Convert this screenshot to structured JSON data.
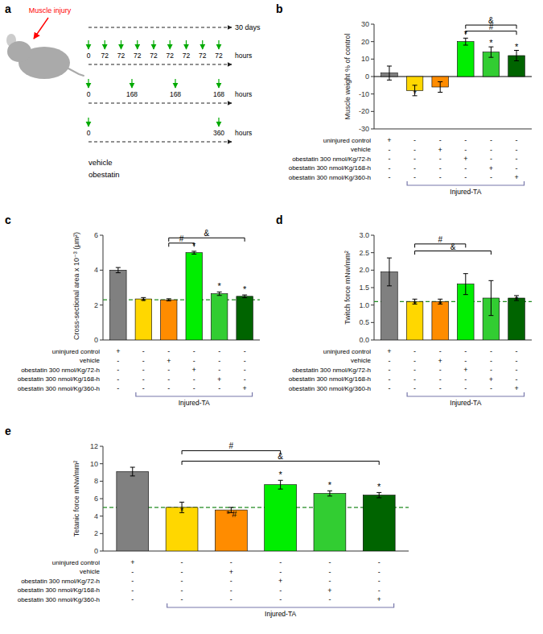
{
  "chart_data": [
    {
      "type": "diagram",
      "title": "a",
      "annotations": [
        {
          "text": "Muscle injury",
          "color": "#FF0000"
        },
        {
          "text": "30 days"
        },
        {
          "text": "vehicle"
        },
        {
          "text": "obestatin"
        }
      ],
      "timelines": [
        {
          "labels": [
            "0",
            "72",
            "72",
            "72",
            "72",
            "72",
            "72",
            "72",
            "72"
          ],
          "unit": "hours",
          "color": "#00AA00"
        },
        {
          "labels": [
            "0",
            "168",
            "168",
            "168"
          ],
          "unit": "hours",
          "color": "#00AA00"
        },
        {
          "labels": [
            "0",
            "360"
          ],
          "unit": "hours",
          "color": "#00AA00"
        }
      ]
    },
    {
      "type": "bar",
      "title": "b",
      "categories": [
        null,
        null,
        null,
        null,
        null,
        null
      ],
      "values": [
        2,
        -8,
        -6,
        20,
        14,
        12
      ],
      "errors": [
        4,
        3,
        3,
        2,
        3,
        3
      ],
      "colors": [
        "#808080",
        "#FFD700",
        "#FF8C00",
        "#00EE00",
        "#32CD32",
        "#006400"
      ],
      "ylabel": "Muscle weight  % of control",
      "ylim": [
        -30,
        30
      ],
      "yticks": [
        -30,
        -20,
        -10,
        0,
        10,
        20,
        30
      ],
      "tick_labels": "y",
      "annotations": [
        {
          "text": "*",
          "category": 1,
          "y": -12
        },
        {
          "text": "*",
          "category": 3,
          "y": 22
        },
        {
          "text": "*",
          "category": 4,
          "y": 17
        },
        {
          "text": "*",
          "category": 5,
          "y": 15
        }
      ],
      "brackets": [
        {
          "text": "#",
          "x1": 3,
          "x2": 5,
          "y": 26
        },
        {
          "text": "&",
          "x1": 3,
          "x2": 5,
          "y": 29.5
        }
      ],
      "table": {
        "rows": [
          "uninjured control",
          "vehicle",
          "obestatin 300 nmol/Kg/72-h",
          "obestatin 300 nmol/Kg/168-h",
          "obestatin 300 nmol/Kg/360-h"
        ],
        "signs": [
          [
            "+",
            "-",
            "-",
            "-",
            "-",
            "-"
          ],
          [
            "-",
            "-",
            "+",
            "-",
            "-",
            "-"
          ],
          [
            "-",
            "-",
            "-",
            "+",
            "-",
            "-"
          ],
          [
            "-",
            "-",
            "-",
            "-",
            "+",
            "-"
          ],
          [
            "-",
            "-",
            "-",
            "-",
            "-",
            "+"
          ]
        ],
        "group": {
          "label": "Injured-TA",
          "first": 1,
          "last": 5,
          "color": "#7777AA"
        }
      }
    },
    {
      "type": "bar",
      "title": "c",
      "categories": [
        null,
        null,
        null,
        null,
        null,
        null
      ],
      "values": [
        4.0,
        2.35,
        2.3,
        5.0,
        2.65,
        2.5
      ],
      "errors": [
        0.15,
        0.08,
        0.06,
        0.08,
        0.1,
        0.08
      ],
      "colors": [
        "#808080",
        "#FFD700",
        "#FF8C00",
        "#00EE00",
        "#32CD32",
        "#006400"
      ],
      "ylabel": "Cross-sectional area x 10⁻³ (μm²)",
      "ylim": [
        0,
        6
      ],
      "yticks": [
        0,
        2,
        4,
        6
      ],
      "tick_labels": "y",
      "reference_line": {
        "y": 2.3,
        "color": "#228B22",
        "line_style": "dashed"
      },
      "annotations": [
        {
          "text": "*",
          "category": 1,
          "y": 2.0
        },
        {
          "text": "*",
          "category": 3,
          "y": 5.15
        },
        {
          "text": "*",
          "category": 4,
          "y": 2.85
        },
        {
          "text": "*",
          "category": 5,
          "y": 2.68
        }
      ],
      "brackets": [
        {
          "text": "#",
          "x1": 2,
          "x2": 3,
          "y": 5.55
        },
        {
          "text": "&",
          "x1": 2,
          "x2": 5,
          "y": 5.85
        }
      ],
      "table": {
        "rows": [
          "uninjured control",
          "vehicle",
          "obestatin 300 nmol/Kg/72-h",
          "obestatin 300 nmol/Kg/168-h",
          "obestatin 300 nmol/Kg/360-h"
        ],
        "signs": [
          [
            "+",
            "-",
            "-",
            "-",
            "-",
            "-"
          ],
          [
            "-",
            "-",
            "+",
            "-",
            "-",
            "-"
          ],
          [
            "-",
            "-",
            "-",
            "+",
            "-",
            "-"
          ],
          [
            "-",
            "-",
            "-",
            "-",
            "+",
            "-"
          ],
          [
            "-",
            "-",
            "-",
            "-",
            "-",
            "+"
          ]
        ],
        "group": {
          "label": "Injured-TA",
          "first": 1,
          "last": 5,
          "color": "#7777AA"
        }
      }
    },
    {
      "type": "bar",
      "title": "d",
      "categories": [
        null,
        null,
        null,
        null,
        null,
        null
      ],
      "values": [
        1.95,
        1.1,
        1.1,
        1.6,
        1.2,
        1.2
      ],
      "errors": [
        0.4,
        0.07,
        0.07,
        0.3,
        0.5,
        0.07
      ],
      "colors": [
        "#808080",
        "#FFD700",
        "#FF8C00",
        "#00EE00",
        "#32CD32",
        "#006400"
      ],
      "ylabel": "Twitch force mNw/mm²",
      "ylim": [
        0,
        3
      ],
      "yticks": [
        {
          "value": 0,
          "label": "0.0"
        },
        0.5,
        {
          "value": 1,
          "label": "1.0"
        },
        1.5,
        {
          "value": 2,
          "label": "2.0"
        },
        2.5,
        {
          "value": 3,
          "label": "3.0"
        }
      ],
      "tick_labels": "y",
      "reference_line": {
        "y": 1.1,
        "color": "#228B22",
        "line_style": "dashed"
      },
      "annotations": [
        {
          "text": "*",
          "category": 1,
          "y": 0.9
        },
        {
          "text": "*",
          "category": 2,
          "y": 0.9
        },
        {
          "text": "*",
          "category": 5,
          "y": 1.05
        }
      ],
      "brackets": [
        {
          "text": "#",
          "x1": 1,
          "x2": 3,
          "y": 2.75
        },
        {
          "text": "&",
          "x1": 1,
          "x2": 4,
          "y": 2.55
        }
      ],
      "table": {
        "rows": [
          "uninjured control",
          "vehicle",
          "obestatin 300 nmol/Kg/72-h",
          "obestatin 300 nmol/Kg/168-h",
          "obestatin 300 nmol/Kg/360-h"
        ],
        "signs": [
          [
            "+",
            "-",
            "-",
            "-",
            "-",
            "-"
          ],
          [
            "-",
            "-",
            "+",
            "-",
            "-",
            "-"
          ],
          [
            "-",
            "-",
            "-",
            "+",
            "-",
            "-"
          ],
          [
            "-",
            "-",
            "-",
            "-",
            "+",
            "-"
          ],
          [
            "-",
            "-",
            "-",
            "-",
            "-",
            "+"
          ]
        ],
        "group": {
          "label": "Injured-TA",
          "first": 1,
          "last": 5,
          "color": "#7777AA"
        }
      }
    },
    {
      "type": "bar",
      "title": "e",
      "categories": [
        null,
        null,
        null,
        null,
        null,
        null
      ],
      "values": [
        9.1,
        5.0,
        4.7,
        7.6,
        6.6,
        6.4
      ],
      "errors": [
        0.5,
        0.6,
        0.3,
        0.5,
        0.3,
        0.3
      ],
      "colors": [
        "#808080",
        "#FFD700",
        "#FF8C00",
        "#00EE00",
        "#32CD32",
        "#006400"
      ],
      "ylabel": "Tetanic force mNw/mm²",
      "ylim": [
        0,
        12
      ],
      "yticks": [
        0,
        2,
        4,
        6,
        8,
        10,
        12
      ],
      "tick_labels": "y",
      "reference_line": {
        "y": 5.0,
        "color": "#228B22",
        "line_style": "dashed"
      },
      "annotations": [
        {
          "text": "*",
          "category": 1,
          "y": 4.2
        },
        {
          "text": "*",
          "category": 2,
          "y": 3.8
        },
        {
          "text": "*",
          "category": 3,
          "y": 8.3
        },
        {
          "text": "*",
          "category": 4,
          "y": 7.1
        },
        {
          "text": "*",
          "category": 5,
          "y": 6.9
        },
        {
          "text": "#",
          "category": 2,
          "y": 3.8
        }
      ],
      "brackets": [
        {
          "text": "#",
          "x1": 1,
          "x2": 3,
          "y": 11.5
        },
        {
          "text": "&",
          "x1": 1,
          "x2": 5,
          "y": 10.3
        }
      ],
      "table": {
        "rows": [
          "uninjured control",
          "vehicle",
          "obestatin 300 nmol/Kg/72-h",
          "obestatin 300 nmol/Kg/168-h",
          "obestatin 300 nmol/Kg/360-h"
        ],
        "signs": [
          [
            "+",
            "-",
            "-",
            "-",
            "-",
            "-"
          ],
          [
            "-",
            "-",
            "+",
            "-",
            "-",
            "-"
          ],
          [
            "-",
            "-",
            "-",
            "+",
            "-",
            "-"
          ],
          [
            "-",
            "-",
            "-",
            "-",
            "+",
            "-"
          ],
          [
            "-",
            "-",
            "-",
            "-",
            "-",
            "+"
          ]
        ],
        "group": {
          "label": "Injured-TA",
          "first": 1,
          "last": 5,
          "color": "#7777AA"
        }
      }
    }
  ]
}
